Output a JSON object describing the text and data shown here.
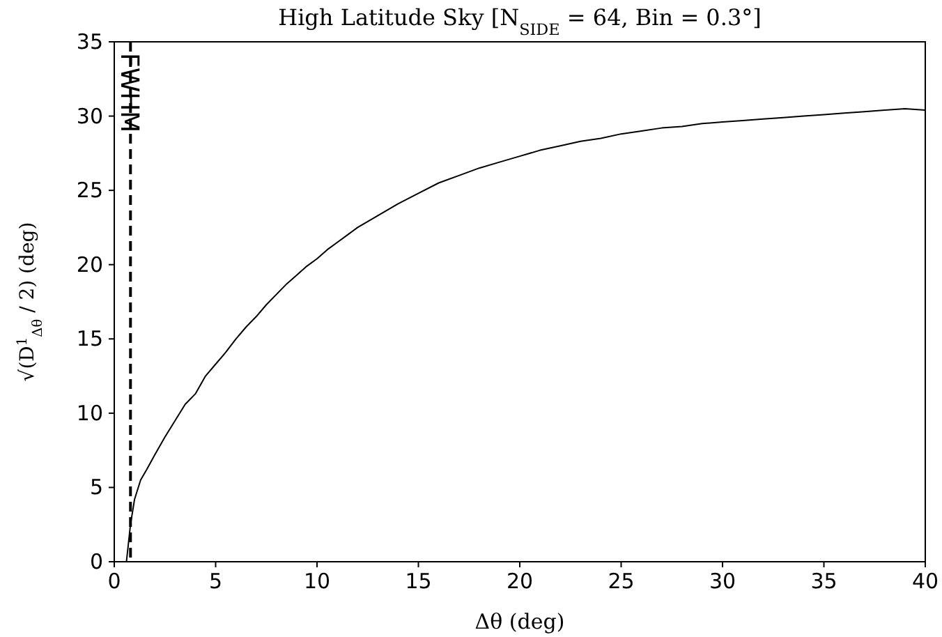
{
  "chart_data": {
    "type": "line",
    "title": "High Latitude Sky [N$_{SIDE}$ = 64, Bin = 0.3°]",
    "xlabel": "Δθ (deg)",
    "ylabel": "√(D$^{1}$$_{Δθ}$ / 2) (deg)",
    "x": [
      0.6,
      0.8,
      1.0,
      1.3,
      1.6,
      2.0,
      2.5,
      3.0,
      3.5,
      4.0,
      4.5,
      5.0,
      5.5,
      6.0,
      6.5,
      7.0,
      7.5,
      8.0,
      8.5,
      9.0,
      9.5,
      10.0,
      10.5,
      11.0,
      11.5,
      12.0,
      12.5,
      13.0,
      14.0,
      15.0,
      16.0,
      17.0,
      18.0,
      19.0,
      20.0,
      21.0,
      22.0,
      23.0,
      24.0,
      25.0,
      26.0,
      27.0,
      28.0,
      29.0,
      30.0,
      31.0,
      32.0,
      33.0,
      34.0,
      35.0,
      36.0,
      37.0,
      38.0,
      39.0,
      40.0
    ],
    "series": [
      {
        "color": "#000000",
        "values": [
          0,
          2.5,
          4.2,
          5.5,
          6.2,
          7.2,
          8.4,
          9.5,
          10.6,
          11.3,
          12.5,
          13.3,
          14.1,
          15.0,
          15.8,
          16.5,
          17.3,
          18.0,
          18.7,
          19.3,
          19.9,
          20.4,
          21.0,
          21.5,
          22.0,
          22.5,
          22.9,
          23.3,
          24.1,
          24.8,
          25.5,
          26.0,
          26.5,
          26.9,
          27.3,
          27.7,
          28.0,
          28.3,
          28.5,
          28.8,
          29.0,
          29.2,
          29.3,
          29.5,
          29.6,
          29.7,
          29.8,
          29.9,
          30.0,
          30.1,
          30.2,
          30.3,
          30.4,
          30.5,
          30.4
        ]
      }
    ],
    "xlim": [
      0,
      40
    ],
    "ylim": [
      0,
      35
    ],
    "xticks": [
      0,
      5,
      10,
      15,
      20,
      25,
      30,
      35,
      40
    ],
    "yticks": [
      0,
      5,
      10,
      15,
      20,
      25,
      30,
      35
    ],
    "ref_lines": [
      {
        "axis": "x",
        "value": 0.8,
        "label": "FWHM",
        "color": "#000000",
        "line_style": "dashed"
      }
    ],
    "grid": false,
    "marker": "none",
    "line_style": "solid"
  }
}
